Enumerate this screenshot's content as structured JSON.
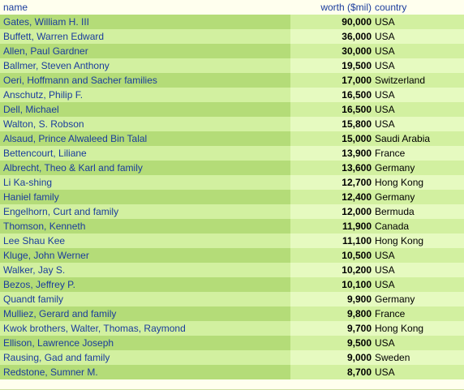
{
  "headers": {
    "name": "name",
    "worth": "worth ($mil)",
    "country": "country"
  },
  "rows": [
    {
      "name": "Gates, William H. III",
      "worth": "90,000",
      "country": "USA"
    },
    {
      "name": "Buffett, Warren Edward",
      "worth": "36,000",
      "country": "USA"
    },
    {
      "name": "Allen, Paul Gardner",
      "worth": "30,000",
      "country": "USA"
    },
    {
      "name": "Ballmer, Steven Anthony",
      "worth": "19,500",
      "country": "USA"
    },
    {
      "name": "Oeri, Hoffmann and Sacher families",
      "worth": "17,000",
      "country": "Switzerland"
    },
    {
      "name": "Anschutz, Philip F.",
      "worth": "16,500",
      "country": "USA"
    },
    {
      "name": "Dell, Michael",
      "worth": "16,500",
      "country": "USA"
    },
    {
      "name": "Walton, S. Robson",
      "worth": "15,800",
      "country": "USA"
    },
    {
      "name": "Alsaud, Prince Alwaleed Bin Talal",
      "worth": "15,000",
      "country": "Saudi Arabia"
    },
    {
      "name": "Bettencourt, Liliane",
      "worth": "13,900",
      "country": "France"
    },
    {
      "name": "Albrecht, Theo & Karl and family",
      "worth": "13,600",
      "country": "Germany"
    },
    {
      "name": "Li Ka-shing",
      "worth": "12,700",
      "country": "Hong Kong"
    },
    {
      "name": "Haniel family",
      "worth": "12,400",
      "country": "Germany"
    },
    {
      "name": "Engelhorn, Curt and family",
      "worth": "12,000",
      "country": "Bermuda"
    },
    {
      "name": "Thomson, Kenneth",
      "worth": "11,900",
      "country": "Canada"
    },
    {
      "name": "Lee Shau Kee",
      "worth": "11,100",
      "country": "Hong Kong"
    },
    {
      "name": "Kluge, John Werner",
      "worth": "10,500",
      "country": "USA"
    },
    {
      "name": "Walker, Jay S.",
      "worth": "10,200",
      "country": "USA"
    },
    {
      "name": "Bezos, Jeffrey P.",
      "worth": "10,100",
      "country": "USA"
    },
    {
      "name": "Quandt family",
      "worth": "9,900",
      "country": "Germany"
    },
    {
      "name": "Mulliez, Gerard and family",
      "worth": "9,800",
      "country": "France"
    },
    {
      "name": "Kwok brothers, Walter, Thomas, Raymond",
      "worth": "9,700",
      "country": "Hong Kong"
    },
    {
      "name": "Ellison, Lawrence Joseph",
      "worth": "9,500",
      "country": "USA"
    },
    {
      "name": "Rausing, Gad and family",
      "worth": "9,000",
      "country": "Sweden"
    },
    {
      "name": "Redstone, Sumner M.",
      "worth": "8,700",
      "country": "USA"
    }
  ]
}
